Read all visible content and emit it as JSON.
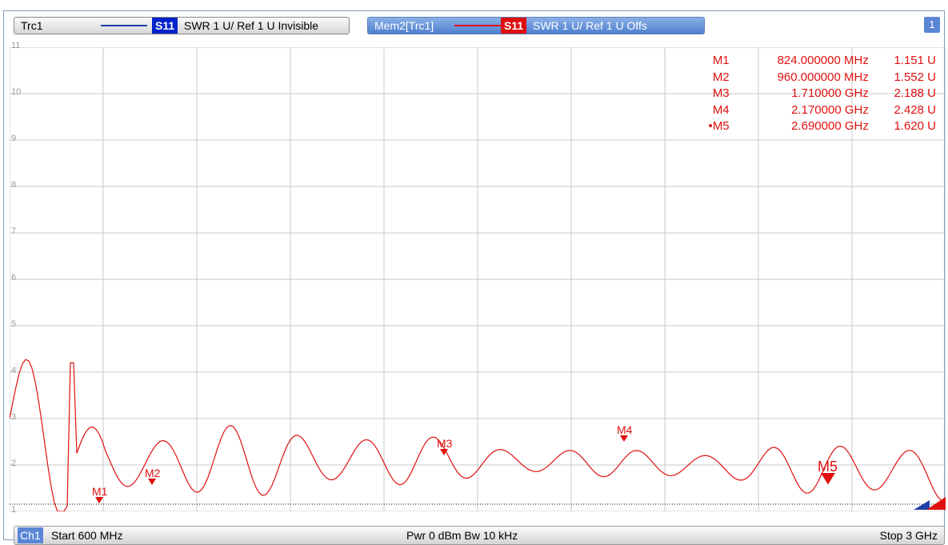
{
  "trace1": {
    "name": "Trc1",
    "param": "S11",
    "desc": "SWR  1 U/ Ref 1 U  Invisible",
    "line_color": "#1f3fa8"
  },
  "trace2": {
    "name": "Mem2[Trc1]",
    "param": "S11",
    "desc": "SWR  1 U/ Ref 1 U  Offs",
    "line_color": "#e01010"
  },
  "channel_badge": "1",
  "y_axis": {
    "labels": [
      "11",
      "10",
      "9",
      "8",
      "7",
      "6",
      "5",
      "4",
      "3",
      "2",
      "1"
    ]
  },
  "markers": [
    {
      "id": "M1",
      "value": "824.000000 MHz",
      "reading": "1.151 U",
      "active": false
    },
    {
      "id": "M2",
      "value": "960.000000 MHz",
      "reading": "1.552 U",
      "active": false
    },
    {
      "id": "M3",
      "value": "1.710000 GHz",
      "reading": "2.188 U",
      "active": false
    },
    {
      "id": "M4",
      "value": "2.170000 GHz",
      "reading": "2.428 U",
      "active": false
    },
    {
      "id": "M5",
      "value": "2.690000 GHz",
      "reading": "1.620 U",
      "active": true
    }
  ],
  "bottom": {
    "channel": "Ch1",
    "start": "Start  600 MHz",
    "center": "Pwr  0 dBm  Bw  10 kHz",
    "stop": "Stop  3 GHz"
  },
  "colors": {
    "trace": "#e01010",
    "grid": "#c8c8c8",
    "accent": "#5b86d6"
  }
}
